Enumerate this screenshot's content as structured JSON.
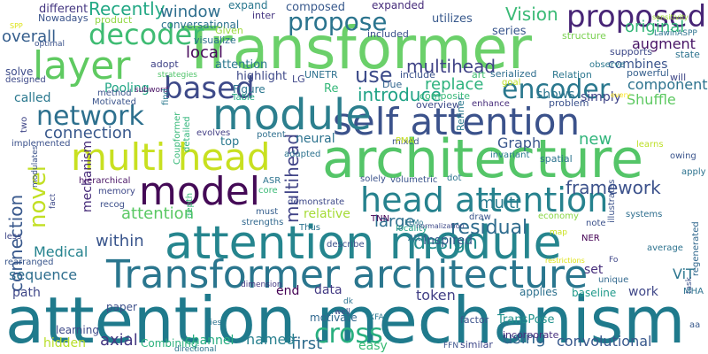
{
  "words": [
    {
      "text": "attention mechanism",
      "color": "#1f7a8c"
    },
    {
      "text": "Transformer",
      "color": "#6bd06a"
    },
    {
      "text": "architecture",
      "color": "#54c568"
    },
    {
      "text": "attention module",
      "color": "#25858e"
    },
    {
      "text": "Transformer architecture",
      "color": "#2a768e"
    },
    {
      "text": "self attention",
      "color": "#3b528b"
    },
    {
      "text": "module",
      "color": "#2c7f8e"
    },
    {
      "text": "model",
      "color": "#440a56"
    },
    {
      "text": "multi head",
      "color": "#c8e020"
    },
    {
      "text": "head attention",
      "color": "#26828e"
    },
    {
      "text": "layer",
      "color": "#5fca61"
    },
    {
      "text": "based",
      "color": "#3e4a89"
    },
    {
      "text": "network",
      "color": "#2d708e"
    },
    {
      "text": "proposed",
      "color": "#482576"
    },
    {
      "text": "propose",
      "color": "#2b748e"
    },
    {
      "text": "decoder",
      "color": "#3fbc73"
    },
    {
      "text": "encoder",
      "color": "#2a788e"
    },
    {
      "text": "novel",
      "color": "#c2df23"
    },
    {
      "text": "multihead",
      "color": "#414487"
    },
    {
      "text": "connection",
      "color": "#38588c"
    },
    {
      "text": "attention",
      "color": "#5ac864"
    },
    {
      "text": "cross",
      "color": "#29af7f"
    },
    {
      "text": "residual",
      "color": "#2f6c8e"
    },
    {
      "text": "design",
      "color": "#228c8d"
    },
    {
      "text": "framework",
      "color": "#3b518b"
    },
    {
      "text": "Vision",
      "color": "#3aba76"
    },
    {
      "text": "overall",
      "color": "#355e8d"
    },
    {
      "text": "Recently",
      "color": "#22a884"
    },
    {
      "text": "local",
      "color": "#46075a"
    },
    {
      "text": "window",
      "color": "#2e6f8e"
    },
    {
      "text": "Graph",
      "color": "#39568c"
    },
    {
      "text": "introduce",
      "color": "#20a386"
    },
    {
      "text": "use",
      "color": "#3e4c8a"
    },
    {
      "text": "replace",
      "color": "#2db27d"
    },
    {
      "text": "within",
      "color": "#39558c"
    },
    {
      "text": "level",
      "color": "#3d4e8a"
    },
    {
      "text": "multi",
      "color": "#297b8e"
    },
    {
      "text": "large",
      "color": "#2e6e8e"
    },
    {
      "text": "new",
      "color": "#31b57b"
    },
    {
      "text": "original",
      "color": "#35b779"
    },
    {
      "text": "augment",
      "color": "#471365"
    },
    {
      "text": "component",
      "color": "#2c728e"
    },
    {
      "text": "Shuffle",
      "color": "#5ec962"
    },
    {
      "text": "combines",
      "color": "#3a548c"
    },
    {
      "text": "ViT",
      "color": "#2b758e"
    },
    {
      "text": "axial",
      "color": "#453882"
    },
    {
      "text": "first",
      "color": "#2f6c8e"
    },
    {
      "text": "named",
      "color": "#277f8e"
    },
    {
      "text": "using",
      "color": "#32658e"
    },
    {
      "text": "convolutional",
      "color": "#38588c"
    },
    {
      "text": "token",
      "color": "#424086"
    },
    {
      "text": "sequence",
      "color": "#2e6e8e"
    },
    {
      "text": "Medical",
      "color": "#25838e"
    },
    {
      "text": "hidden",
      "color": "#b8de29"
    },
    {
      "text": "path",
      "color": "#3f4788"
    },
    {
      "text": "called",
      "color": "#2a788e"
    },
    {
      "text": "Pooling",
      "color": "#21a685"
    },
    {
      "text": "feature",
      "color": "#29798e"
    },
    {
      "text": "reattention",
      "color": "#287c8e"
    },
    {
      "text": "mechanism",
      "color": "#472c7a"
    },
    {
      "text": "batch",
      "color": "#228b8d"
    },
    {
      "text": "MHSA",
      "color": "#3dbc74"
    },
    {
      "text": "end",
      "color": "#440154"
    },
    {
      "text": "data",
      "color": "#443b84"
    },
    {
      "text": "channel",
      "color": "#26ad81"
    },
    {
      "text": "easy",
      "color": "#3bbb75"
    },
    {
      "text": "sparse",
      "color": "#38598c"
    },
    {
      "text": "relative",
      "color": "#a5db36"
    },
    {
      "text": "Inspired",
      "color": "#375a8c"
    },
    {
      "text": "neural",
      "color": "#2c728e"
    },
    {
      "text": "top",
      "color": "#2a788e"
    },
    {
      "text": "set",
      "color": "#472e7c"
    },
    {
      "text": "simply",
      "color": "#404588"
    },
    {
      "text": "shows",
      "color": "#2b758e"
    },
    {
      "text": "work",
      "color": "#3f4788"
    },
    {
      "text": "different",
      "color": "#453781"
    },
    {
      "text": "composed",
      "color": "#38598c"
    },
    {
      "text": "series",
      "color": "#39568c"
    },
    {
      "text": "highlight",
      "color": "#3e4989"
    },
    {
      "text": "Figure",
      "color": "#2a768e"
    },
    {
      "text": "attention ",
      "color": "#2a788e"
    },
    {
      "text": "speech",
      "color": "#52c569"
    },
    {
      "text": "paper",
      "color": "#3c4f8a"
    },
    {
      "text": "TransPose",
      "color": "#20928c"
    },
    {
      "text": "applies",
      "color": "#2d718e"
    },
    {
      "text": "baseline",
      "color": "#1f998a"
    },
    {
      "text": "incorporate",
      "color": "#472f7d"
    },
    {
      "text": "similar",
      "color": "#3f4889"
    },
    {
      "text": "learning",
      "color": "#3e4a89"
    },
    {
      "text": "Combining",
      "color": "#2db27d"
    },
    {
      "text": "motivate",
      "color": "#31688e"
    },
    {
      "text": "predicts",
      "color": "#3d4d8a"
    },
    {
      "text": "factor",
      "color": "#3b528b"
    },
    {
      "text": "utilizes",
      "color": "#38598c"
    },
    {
      "text": "expanded",
      "color": "#472d7b"
    },
    {
      "text": "expand",
      "color": "#2a778e"
    },
    {
      "text": "solve",
      "color": "#3e4c8a"
    },
    {
      "text": "inter",
      "color": "#453581"
    },
    {
      "text": "product",
      "color": "#90d743"
    },
    {
      "text": "conversational",
      "color": "#2c738e"
    },
    {
      "text": "Nowadays",
      "color": "#3a538b"
    },
    {
      "text": "Given",
      "color": "#9bd93c"
    },
    {
      "text": "visualize",
      "color": "#2e6f8e"
    },
    {
      "text": "adopt",
      "color": "#404387"
    },
    {
      "text": "included",
      "color": "#3b518b"
    },
    {
      "text": "structure",
      "color": "#7ad151"
    },
    {
      "text": "supports",
      "color": "#3e4a89"
    },
    {
      "text": "state",
      "color": "#2c728e"
    },
    {
      "text": "observe",
      "color": "#2a778e"
    },
    {
      "text": "powerful",
      "color": "#355f8d"
    },
    {
      "text": "will",
      "color": "#3f4788"
    },
    {
      "text": "Relation",
      "color": "#2a768e"
    },
    {
      "text": "goal",
      "color": "#c0df25"
    },
    {
      "text": "art",
      "color": "#40bd72"
    },
    {
      "text": "serialized",
      "color": "#2e6e8e"
    },
    {
      "text": "include",
      "color": "#3b528b"
    },
    {
      "text": "Due",
      "color": "#32658e"
    },
    {
      "text": "LG",
      "color": "#3f4788"
    },
    {
      "text": "UNETR",
      "color": "#2d718e"
    },
    {
      "text": "Re",
      "color": "#35b779"
    },
    {
      "text": "overview",
      "color": "#3e4c8a"
    },
    {
      "text": "composite",
      "color": "#37b878"
    },
    {
      "text": "enhance",
      "color": "#472d7b"
    },
    {
      "text": "problem",
      "color": "#3b518b"
    },
    {
      "text": "every",
      "color": "#fde725"
    },
    {
      "text": "Refiner",
      "color": "#2a788e"
    },
    {
      "text": "mixed",
      "color": "#3b528b"
    },
    {
      "text": "spatial",
      "color": "#2c738e"
    },
    {
      "text": "invariant",
      "color": "#29798e"
    },
    {
      "text": "learns",
      "color": "#bddf26"
    },
    {
      "text": "owing",
      "color": "#3a548c"
    },
    {
      "text": "apply",
      "color": "#2c728e"
    },
    {
      "text": "Due to",
      "color": "#3e4a89"
    },
    {
      "text": "method",
      "color": "#3b528b"
    },
    {
      "text": "Motivated",
      "color": "#3a548c"
    },
    {
      "text": "strategies",
      "color": "#50c46a"
    },
    {
      "text": "subword",
      "color": "#471063"
    },
    {
      "text": "Table",
      "color": "#25ab82"
    },
    {
      "text": "Coupformer",
      "color": "#37b878"
    },
    {
      "text": "detailed",
      "color": "#31b57b"
    },
    {
      "text": "find",
      "color": "#2a788e"
    },
    {
      "text": "two",
      "color": "#404688"
    },
    {
      "text": "implemented",
      "color": "#3b518b"
    },
    {
      "text": "evolves",
      "color": "#433e85"
    },
    {
      "text": "potent",
      "color": "#2e6f8e"
    },
    {
      "text": "PMA",
      "color": "#c7e020"
    },
    {
      "text": "adapted",
      "color": "#2c728e"
    },
    {
      "text": "hierarchical",
      "color": "#471163"
    },
    {
      "text": "memory",
      "color": "#3e4989"
    },
    {
      "text": "depth",
      "color": "#38b977"
    },
    {
      "text": "recog",
      "color": "#3c4f8a"
    },
    {
      "text": "ASR",
      "color": "#2c738e"
    },
    {
      "text": "core",
      "color": "#3aba76"
    },
    {
      "text": "must",
      "color": "#355e8d"
    },
    {
      "text": "strengths",
      "color": "#31688e"
    },
    {
      "text": "Thus",
      "color": "#2c728e"
    },
    {
      "text": "demonstrate",
      "color": "#3e4989"
    },
    {
      "text": "volumetric",
      "color": "#3a548c"
    },
    {
      "text": "solely",
      "color": "#3b528b"
    },
    {
      "text": "dot",
      "color": "#2c728e"
    },
    {
      "text": "TNN",
      "color": "#440154"
    },
    {
      "text": "ELMo",
      "color": "#2a788e"
    },
    {
      "text": "locality",
      "color": "#20a386"
    },
    {
      "text": "Attn",
      "color": "#2e6e8e"
    },
    {
      "text": "normalization",
      "color": "#3e4a89"
    },
    {
      "text": "draw",
      "color": "#3a548c"
    },
    {
      "text": "economy",
      "color": "#8bd646"
    },
    {
      "text": "map",
      "color": "#cae11f"
    },
    {
      "text": "note",
      "color": "#3b518b"
    },
    {
      "text": "NER",
      "color": "#440154"
    },
    {
      "text": "illustrates",
      "color": "#3b528b"
    },
    {
      "text": "systems",
      "color": "#2e6e8e"
    },
    {
      "text": "average",
      "color": "#2c728e"
    },
    {
      "text": "regenerated",
      "color": "#31688e"
    },
    {
      "text": "restrictions",
      "color": "#dfe318"
    },
    {
      "text": "unique",
      "color": "#31688e"
    },
    {
      "text": "describe",
      "color": "#3b518b"
    },
    {
      "text": "dimension",
      "color": "#443983"
    },
    {
      "text": "less",
      "color": "#3f4788"
    },
    {
      "text": "rearranged",
      "color": "#39568c"
    },
    {
      "text": "motivate ",
      "color": "#3b528b"
    },
    {
      "text": "XFA",
      "color": "#2a768e"
    },
    {
      "text": "dk",
      "color": "#2c728e"
    },
    {
      "text": "well",
      "color": "#3e4a89"
    },
    {
      "text": "lies",
      "color": "#2c738e"
    },
    {
      "text": "directional",
      "color": "#2a768e"
    },
    {
      "text": "FFN",
      "color": "#3b528b"
    },
    {
      "text": "task",
      "color": "#3b528b"
    },
    {
      "text": "aa",
      "color": "#38598c"
    },
    {
      "text": "MHA",
      "color": "#2c728e"
    },
    {
      "text": "Fo",
      "color": "#3f4788"
    },
    {
      "text": "optimal",
      "color": "#3b528b"
    },
    {
      "text": "designed",
      "color": "#3e4a89"
    },
    {
      "text": "SPP",
      "color": "#dde318"
    },
    {
      "text": "LawinASPP",
      "color": "#2c728e"
    },
    {
      "text": "sensitivity",
      "color": "#a0da39"
    },
    {
      "text": "M",
      "color": "#3f4788"
    },
    {
      "text": "d",
      "color": "#3b528b"
    },
    {
      "text": "H",
      "color": "#3b528b"
    },
    {
      "text": "s",
      "color": "#2c728e"
    },
    {
      "text": "x",
      "color": "#2c728e"
    },
    {
      "text": "fact",
      "color": "#3e4a89"
    },
    {
      "text": "modulates",
      "color": "#3b528b"
    },
    {
      "text": "Furthermore",
      "color": "#355e8d"
    }
  ]
}
